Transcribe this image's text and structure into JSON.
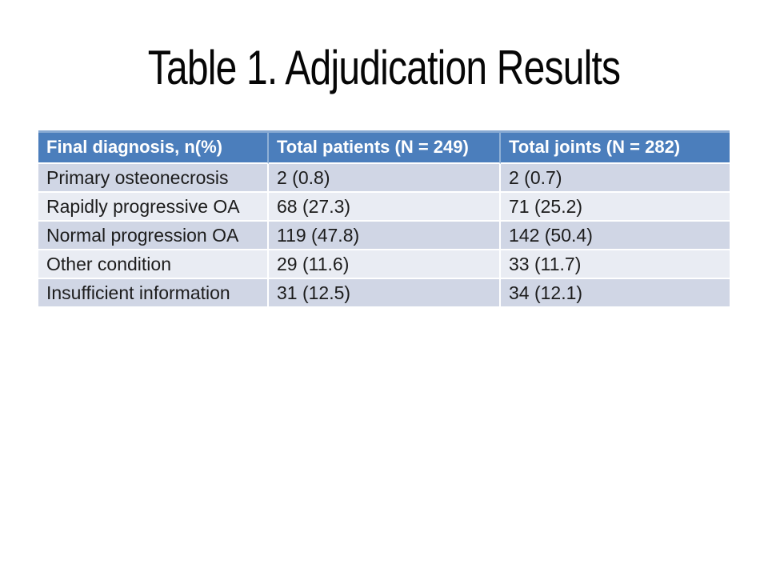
{
  "slide": {
    "title": "Table 1. Adjudication Results",
    "table": {
      "columns": [
        "Final diagnosis, n(%)",
        "Total patients (N = 249)",
        "Total joints (N = 282)"
      ],
      "rows": [
        [
          "Primary osteonecrosis",
          "2 (0.8)",
          "2 (0.7)"
        ],
        [
          "Rapidly progressive OA",
          "68 (27.3)",
          "71 (25.2)"
        ],
        [
          "Normal progression OA",
          "119 (47.8)",
          "142 (50.4)"
        ],
        [
          "Other condition",
          "29 (11.6)",
          "33 (11.7)"
        ],
        [
          "Insufficient information",
          "31 (12.5)",
          "34 (12.1)"
        ]
      ]
    },
    "colors": {
      "header_bg": "#4b7ebc",
      "header_text": "#ffffff",
      "band_dark": "#d0d6e5",
      "band_light": "#e9ecf3",
      "body_text": "#1c1c1c",
      "title_text": "#060606",
      "top_border": "#87a9d2",
      "header_divider": "#8fb0d5",
      "row_divider": "#ffffff",
      "slide_bg": "#ffffff"
    }
  }
}
